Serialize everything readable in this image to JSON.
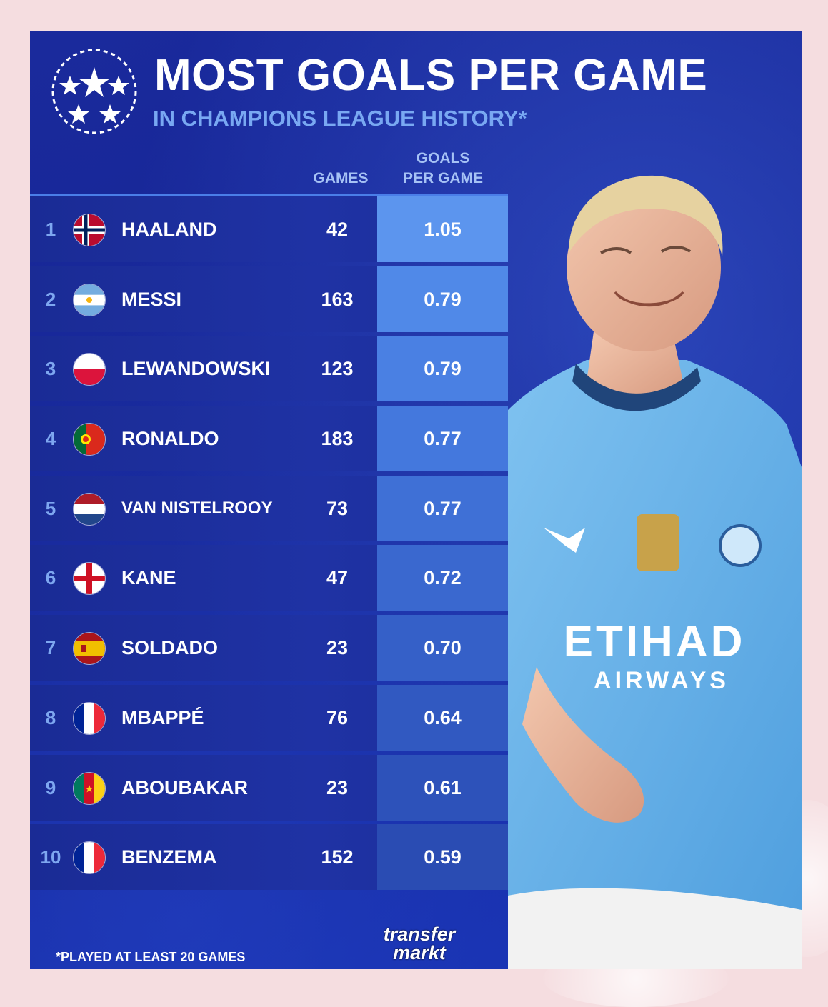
{
  "title": "MOST GOALS PER GAME",
  "subtitle": "IN CHAMPIONS LEAGUE HISTORY*",
  "columns": {
    "games": "GAMES",
    "gpg_line1": "GOALS",
    "gpg_line2": "PER GAME"
  },
  "rows": [
    {
      "rank": "1",
      "name": "HAALAND",
      "games": "42",
      "gpg": "1.05",
      "flag": "norway-flag"
    },
    {
      "rank": "2",
      "name": "MESSI",
      "games": "163",
      "gpg": "0.79",
      "flag": "argentina-flag"
    },
    {
      "rank": "3",
      "name": "LEWANDOWSKI",
      "games": "123",
      "gpg": "0.79",
      "flag": "poland-flag"
    },
    {
      "rank": "4",
      "name": "RONALDO",
      "games": "183",
      "gpg": "0.77",
      "flag": "portugal-flag"
    },
    {
      "rank": "5",
      "name": "VAN NISTELROOY",
      "games": "73",
      "gpg": "0.77",
      "flag": "netherlands-flag"
    },
    {
      "rank": "6",
      "name": "KANE",
      "games": "47",
      "gpg": "0.72",
      "flag": "england-flag"
    },
    {
      "rank": "7",
      "name": "SOLDADO",
      "games": "23",
      "gpg": "0.70",
      "flag": "spain-flag"
    },
    {
      "rank": "8",
      "name": "MBAPPÉ",
      "games": "76",
      "gpg": "0.64",
      "flag": "france-flag"
    },
    {
      "rank": "9",
      "name": "ABOUBAKAR",
      "games": "23",
      "gpg": "0.61",
      "flag": "cameroon-flag"
    },
    {
      "rank": "10",
      "name": "BENZEMA",
      "games": "152",
      "gpg": "0.59",
      "flag": "france-flag"
    }
  ],
  "gpg_shades": [
    "#5c95ee",
    "#5089e8",
    "#4a80e3",
    "#4478dd",
    "#3f70d6",
    "#3a68cf",
    "#3560c8",
    "#3159c1",
    "#2d52ba",
    "#2a4cb3"
  ],
  "footnote": "*PLAYED AT LEAST 20 GAMES",
  "logo_text": {
    "line1": "transfer",
    "line2": "markt"
  },
  "shirt": {
    "sponsor": "ETIHAD",
    "sponsor_sub": "AIRWAYS"
  },
  "colors": {
    "background": "#152494",
    "accent": "#79a8f2",
    "shirt": "#6cb4ec"
  }
}
